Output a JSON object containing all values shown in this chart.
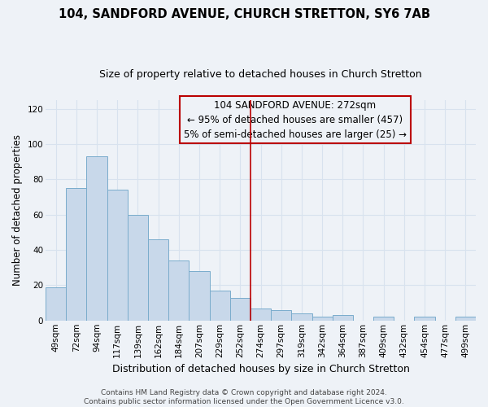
{
  "title": "104, SANDFORD AVENUE, CHURCH STRETTON, SY6 7AB",
  "subtitle": "Size of property relative to detached houses in Church Stretton",
  "xlabel": "Distribution of detached houses by size in Church Stretton",
  "ylabel": "Number of detached properties",
  "bar_color": "#c8d8ea",
  "bar_edge_color": "#7aaccc",
  "categories": [
    "49sqm",
    "72sqm",
    "94sqm",
    "117sqm",
    "139sqm",
    "162sqm",
    "184sqm",
    "207sqm",
    "229sqm",
    "252sqm",
    "274sqm",
    "297sqm",
    "319sqm",
    "342sqm",
    "364sqm",
    "387sqm",
    "409sqm",
    "432sqm",
    "454sqm",
    "477sqm",
    "499sqm"
  ],
  "values": [
    19,
    75,
    93,
    74,
    60,
    46,
    34,
    28,
    17,
    13,
    7,
    6,
    4,
    2,
    3,
    0,
    2,
    0,
    2,
    0,
    2
  ],
  "ylim": [
    0,
    125
  ],
  "yticks": [
    0,
    20,
    40,
    60,
    80,
    100,
    120
  ],
  "annotation_title": "104 SANDFORD AVENUE: 272sqm",
  "annotation_line1": "← 95% of detached houses are smaller (457)",
  "annotation_line2": "5% of semi-detached houses are larger (25) →",
  "footer_line1": "Contains HM Land Registry data © Crown copyright and database right 2024.",
  "footer_line2": "Contains public sector information licensed under the Open Government Licence v3.0.",
  "background_color": "#eef2f7",
  "grid_color": "#d8e2ee",
  "vline_color": "#bb0000",
  "title_fontsize": 10.5,
  "subtitle_fontsize": 9,
  "xlabel_fontsize": 9,
  "ylabel_fontsize": 8.5,
  "tick_fontsize": 7.5,
  "annotation_fontsize": 8.5,
  "footer_fontsize": 6.5,
  "vline_bar_index": 10
}
